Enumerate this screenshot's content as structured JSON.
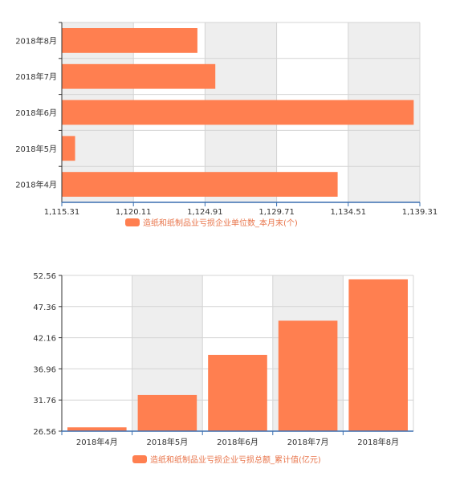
{
  "chart_data": [
    {
      "type": "bar",
      "orientation": "horizontal",
      "categories": [
        "2018年8月",
        "2018年7月",
        "2018年6月",
        "2018年5月",
        "2018年4月"
      ],
      "series": [
        {
          "name": "造纸和纸制品业亏损企业单位数_本月末(个)",
          "values": [
            1124.4,
            1125.6,
            1138.9,
            1116.2,
            1133.8
          ]
        }
      ],
      "xlim": [
        1115.31,
        1139.31
      ],
      "xticks": [
        "1,115.31",
        "1,120.11",
        "1,124.91",
        "1,129.71",
        "1,134.51",
        "1,139.31"
      ],
      "grid": true,
      "legend": "bottom",
      "color": "#ff7f50"
    },
    {
      "type": "bar",
      "orientation": "vertical",
      "categories": [
        "2018年4月",
        "2018年5月",
        "2018年6月",
        "2018年7月",
        "2018年8月"
      ],
      "series": [
        {
          "name": "造纸和纸制品业亏损企业亏损总额_累计值(亿元)",
          "values": [
            27.2,
            32.6,
            39.3,
            45.0,
            51.9
          ]
        }
      ],
      "ylim": [
        26.56,
        52.56
      ],
      "yticks": [
        "26.56",
        "31.76",
        "36.96",
        "42.16",
        "47.36",
        "52.56"
      ],
      "grid": true,
      "legend": "bottom",
      "color": "#ff7f50"
    }
  ]
}
